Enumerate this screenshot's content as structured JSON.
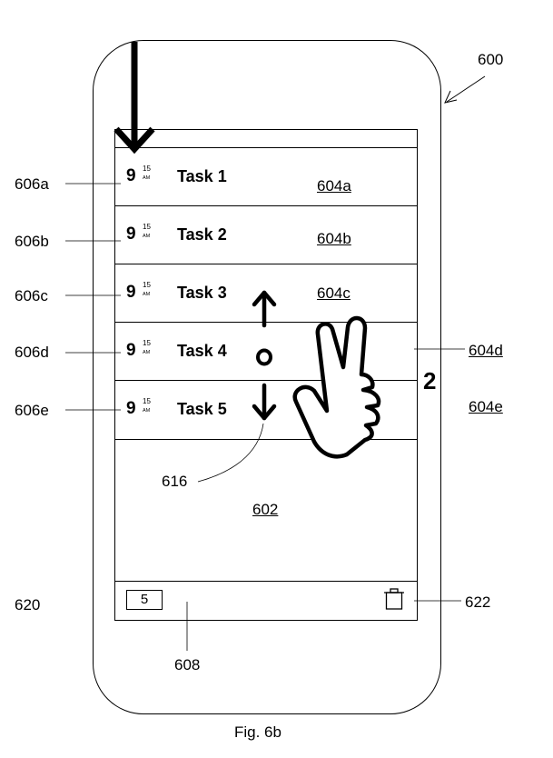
{
  "figure_caption": "Fig. 6b",
  "device_label": "600",
  "screen_label": "602",
  "gesture_label": "616",
  "finger_count": "2",
  "tasks": [
    {
      "hour": "9",
      "minute": "15",
      "ampm": "AM",
      "name": "Task 1",
      "row_label": "604a",
      "time_label": "606a"
    },
    {
      "hour": "9",
      "minute": "15",
      "ampm": "AM",
      "name": "Task 2",
      "row_label": "604b",
      "time_label": "606b"
    },
    {
      "hour": "9",
      "minute": "15",
      "ampm": "AM",
      "name": "Task 3",
      "row_label": "604c",
      "time_label": "606c"
    },
    {
      "hour": "9",
      "minute": "15",
      "ampm": "AM",
      "name": "Task 4",
      "row_label": "604d",
      "time_label": "606d"
    },
    {
      "hour": "9",
      "minute": "15",
      "ampm": "AM",
      "name": "Task 5",
      "row_label": "604e",
      "time_label": "606e"
    }
  ],
  "bottom_bar": {
    "count": "5",
    "bar_label": "608",
    "count_ref_label": "620",
    "trash_label": "622",
    "trash_icon": "trash-icon"
  }
}
